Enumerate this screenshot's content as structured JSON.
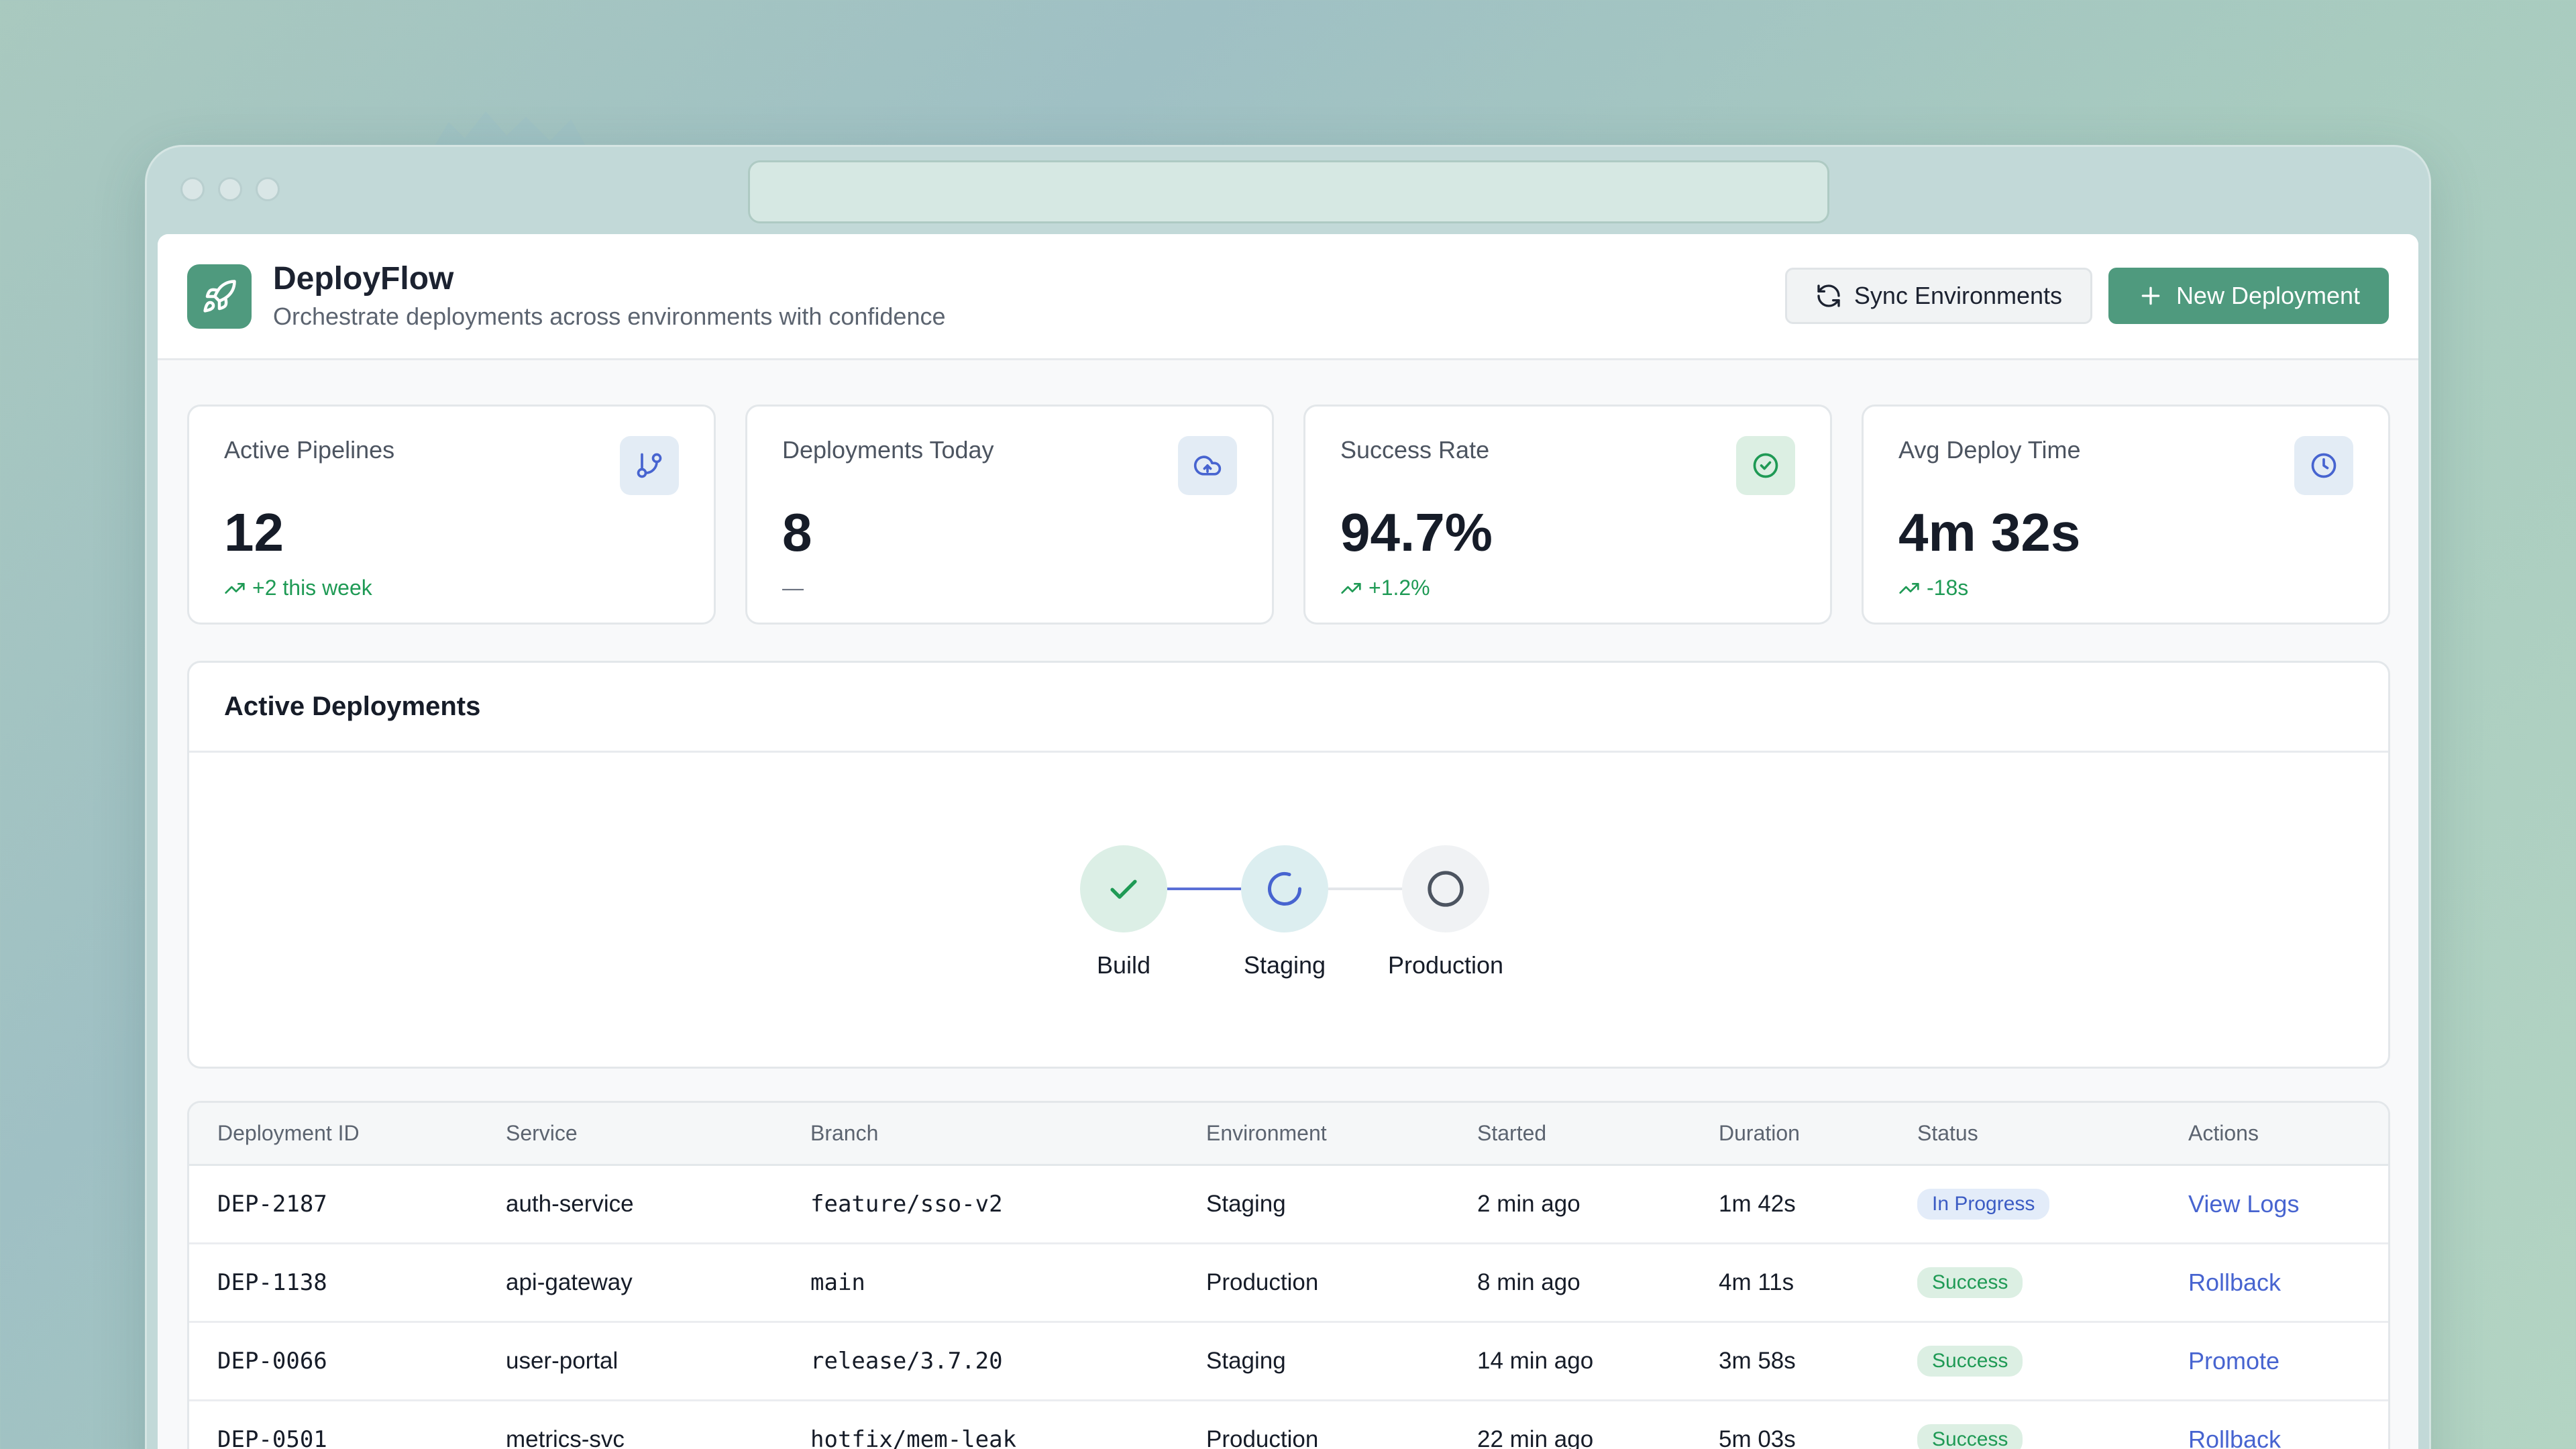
{
  "app": {
    "title": "DeployFlow",
    "subtitle": "Orchestrate deployments across environments with confidence",
    "logo_icon": "rocket-icon"
  },
  "header": {
    "sync_label": "Sync Environments",
    "new_label": "New Deployment"
  },
  "stats": [
    {
      "label": "Active Pipelines",
      "value": "12",
      "delta": "+2 this week",
      "icon": "git-branch-icon",
      "trend": "up"
    },
    {
      "label": "Deployments Today",
      "value": "8",
      "delta": "—",
      "icon": "cloud-upload-icon",
      "trend": "none"
    },
    {
      "label": "Success Rate",
      "value": "94.7%",
      "delta": "+1.2%",
      "icon": "check-circle-icon",
      "trend": "up"
    },
    {
      "label": "Avg Deploy Time",
      "value": "4m 32s",
      "delta": "-18s",
      "icon": "clock-icon",
      "trend": "up"
    }
  ],
  "active": {
    "title": "Active Deployments",
    "stages": [
      {
        "label": "Build",
        "state": "done"
      },
      {
        "label": "Staging",
        "state": "in-progress"
      },
      {
        "label": "Production",
        "state": "pending"
      }
    ]
  },
  "table": {
    "headers": [
      "Deployment ID",
      "Service",
      "Branch",
      "Environment",
      "Started",
      "Duration",
      "Status",
      "Actions"
    ],
    "rows": [
      {
        "id": "DEP-2187",
        "service": "auth-service",
        "branch": "feature/sso-v2",
        "env": "Staging",
        "started": "2 min ago",
        "duration": "1m 42s",
        "status": "In Progress",
        "status_kind": "progress",
        "action": "View Logs"
      },
      {
        "id": "DEP-1138",
        "service": "api-gateway",
        "branch": "main",
        "env": "Production",
        "started": "8 min ago",
        "duration": "4m 11s",
        "status": "Success",
        "status_kind": "success",
        "action": "Rollback"
      },
      {
        "id": "DEP-0066",
        "service": "user-portal",
        "branch": "release/3.7.20",
        "env": "Staging",
        "started": "14 min ago",
        "duration": "3m 58s",
        "status": "Success",
        "status_kind": "success",
        "action": "Promote"
      },
      {
        "id": "DEP-0501",
        "service": "metrics-svc",
        "branch": "hotfix/mem-leak",
        "env": "Production",
        "started": "22 min ago",
        "duration": "5m 03s",
        "status": "Success",
        "status_kind": "success",
        "action": "Rollback"
      }
    ]
  },
  "colors": {
    "accent": "#4f9a7e",
    "success": "#1f9a55",
    "progress": "#3c5cc4",
    "link": "#4764d0"
  }
}
